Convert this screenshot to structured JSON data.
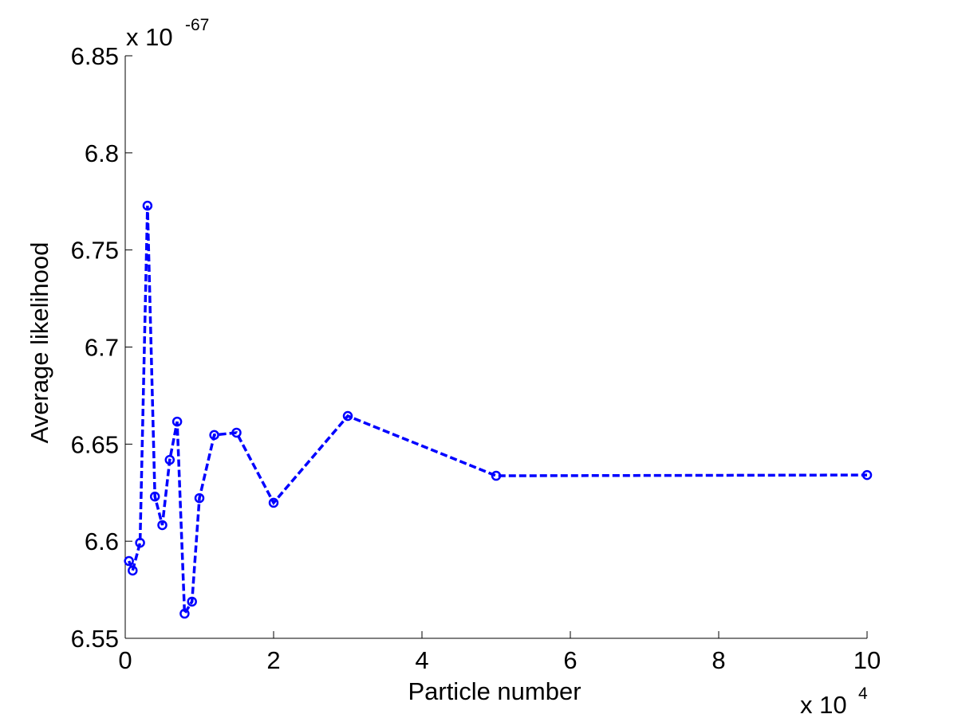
{
  "chart_data": {
    "type": "line",
    "xlabel": "Particle number",
    "ylabel": "Average likelihood",
    "x_multiplier": {
      "base": "x 10",
      "exponent": "4"
    },
    "y_multiplier": {
      "base": "x 10",
      "exponent": "-67"
    },
    "x": [
      0.05,
      0.1,
      0.2,
      0.3,
      0.4,
      0.5,
      0.6,
      0.7,
      0.8,
      0.9,
      1.0,
      1.2,
      1.5,
      2,
      3,
      5,
      10
    ],
    "series": [
      {
        "color": "#0000ff",
        "values": [
          6.5898,
          6.5849,
          6.5992,
          6.7728,
          6.623,
          6.6083,
          6.6419,
          6.6616,
          6.5627,
          6.5689,
          6.6222,
          6.6547,
          6.6559,
          6.6198,
          6.6645,
          6.6337,
          6.6341
        ]
      }
    ],
    "xlim": [
      0,
      10
    ],
    "xticks": [
      0,
      2,
      4,
      6,
      8,
      10
    ],
    "ylim": [
      6.55,
      6.85
    ],
    "yticks": [
      6.55,
      6.6,
      6.65,
      6.7,
      6.75,
      6.8,
      6.85
    ]
  }
}
